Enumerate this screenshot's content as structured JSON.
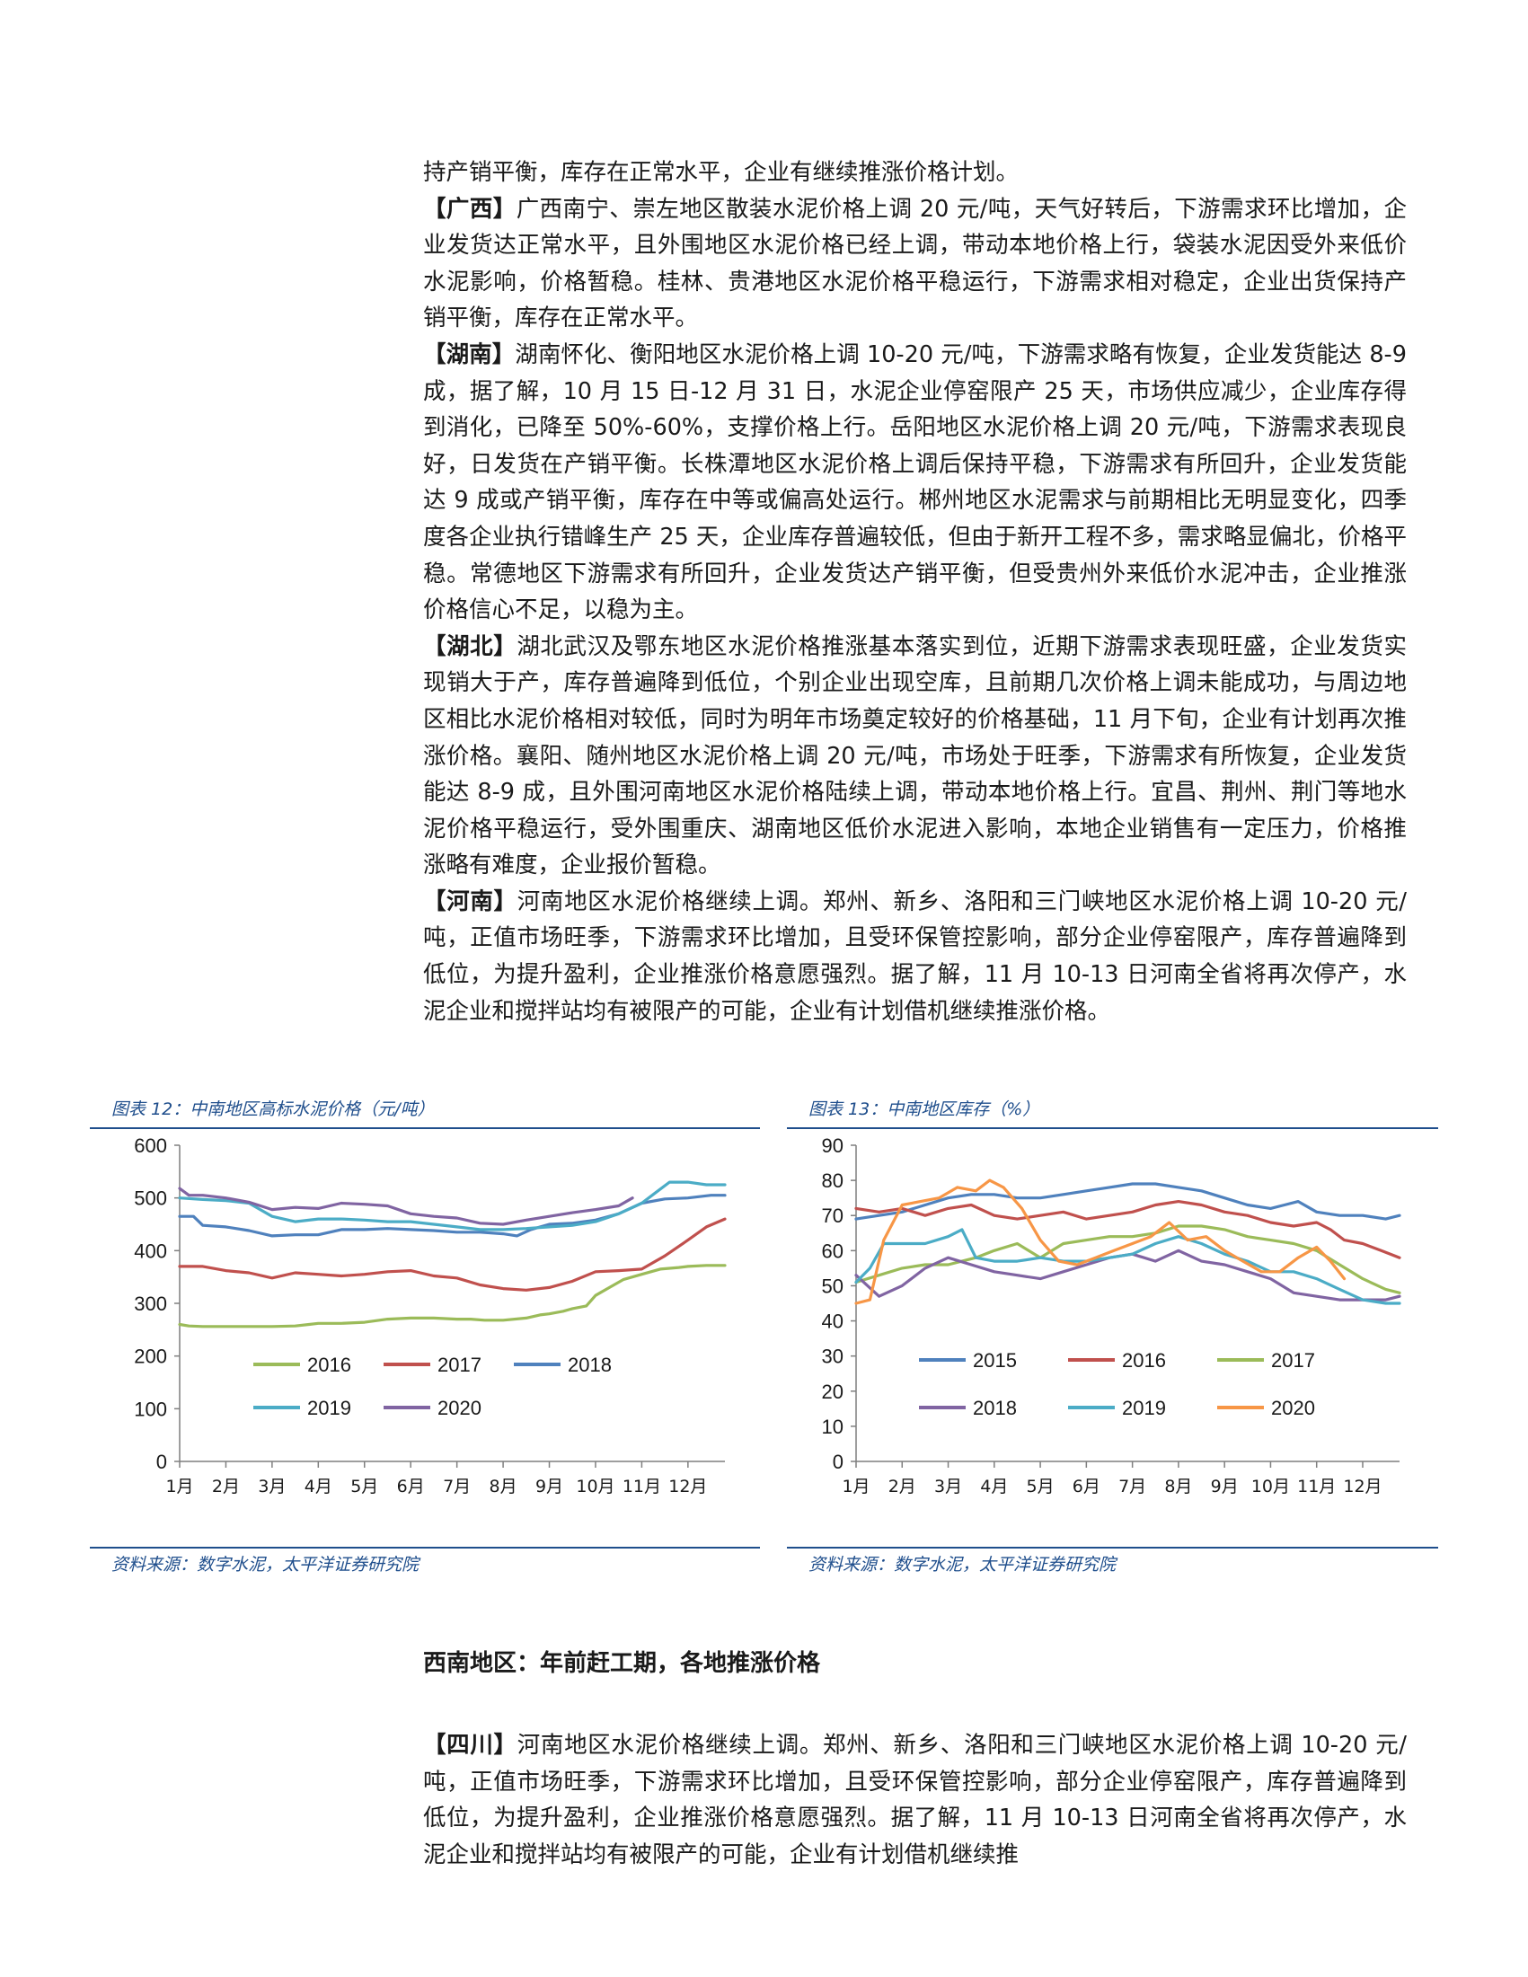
{
  "paragraphs_top": [
    {
      "tag": "",
      "text": "持产销平衡，库存在正常水平，企业有继续推涨价格计划。"
    },
    {
      "tag": "【广西】",
      "text": "广西南宁、崇左地区散装水泥价格上调 20 元/吨，天气好转后，下游需求环比增加，企业发货达正常水平，且外围地区水泥价格已经上调，带动本地价格上行，袋装水泥因受外来低价水泥影响，价格暂稳。桂林、贵港地区水泥价格平稳运行，下游需求相对稳定，企业出货保持产销平衡，库存在正常水平。"
    },
    {
      "tag": "【湖南】",
      "text": "湖南怀化、衡阳地区水泥价格上调 10-20 元/吨，下游需求略有恢复，企业发货能达 8-9 成，据了解，10 月 15 日-12 月 31 日，水泥企业停窑限产 25 天，市场供应减少，企业库存得到消化，已降至 50%-60%，支撑价格上行。岳阳地区水泥价格上调 20 元/吨，下游需求表现良好，日发货在产销平衡。长株潭地区水泥价格上调后保持平稳，下游需求有所回升，企业发货能达 9 成或产销平衡，库存在中等或偏高处运行。郴州地区水泥需求与前期相比无明显变化，四季度各企业执行错峰生产 25 天，企业库存普遍较低，但由于新开工程不多，需求略显偏北，价格平稳。常德地区下游需求有所回升，企业发货达产销平衡，但受贵州外来低价水泥冲击，企业推涨价格信心不足，以稳为主。"
    },
    {
      "tag": "【湖北】",
      "text": "湖北武汉及鄂东地区水泥价格推涨基本落实到位，近期下游需求表现旺盛，企业发货实现销大于产，库存普遍降到低位，个别企业出现空库，且前期几次价格上调未能成功，与周边地区相比水泥价格相对较低，同时为明年市场奠定较好的价格基础，11 月下旬，企业有计划再次推涨价格。襄阳、随州地区水泥价格上调 20 元/吨，市场处于旺季，下游需求有所恢复，企业发货能达 8-9 成，且外围河南地区水泥价格陆续上调，带动本地价格上行。宜昌、荆州、荆门等地水泥价格平稳运行，受外围重庆、湖南地区低价水泥进入影响，本地企业销售有一定压力，价格推涨略有难度，企业报价暂稳。"
    },
    {
      "tag": "【河南】",
      "text": "河南地区水泥价格继续上调。郑州、新乡、洛阳和三门峡地区水泥价格上调 10-20 元/吨，正值市场旺季，下游需求环比增加，且受环保管控影响，部分企业停窑限产，库存普遍降到低位，为提升盈利，企业推涨价格意愿强烈。据了解，11 月 10-13 日河南全省将再次停产，水泥企业和搅拌站均有被限产的可能，企业有计划借机继续推涨价格。"
    }
  ],
  "chart1": {
    "title": "图表 12：中南地区高标水泥价格（元/吨）",
    "source": "资料来源：数字水泥，太平洋证券研究院"
  },
  "chart2": {
    "title": "图表 13：中南地区库存（%）",
    "source": "资料来源：数字水泥，太平洋证券研究院"
  },
  "chart_data": [
    {
      "type": "line",
      "title": "图表 12：中南地区高标水泥价格（元/吨）",
      "ylim": [
        0,
        600
      ],
      "yticks": [
        0,
        100,
        200,
        300,
        400,
        500,
        600
      ],
      "categories": [
        "1月",
        "2月",
        "3月",
        "4月",
        "5月",
        "6月",
        "7月",
        "8月",
        "9月",
        "10月",
        "11月",
        "12月"
      ],
      "legend": "inside-bottom",
      "series": [
        {
          "name": "2016",
          "color": "#9bbb59",
          "x": [
            1,
            1.2,
            1.5,
            2,
            2.5,
            3,
            3.5,
            3.8,
            4,
            4.5,
            5,
            5.5,
            6,
            6.5,
            7,
            7.3,
            7.6,
            8,
            8.5,
            8.8,
            9,
            9.3,
            9.5,
            9.8,
            10,
            10.3,
            10.6,
            11,
            11.4,
            11.8,
            12,
            12.4,
            12.8
          ],
          "values": [
            260,
            257,
            256,
            256,
            256,
            256,
            257,
            260,
            262,
            262,
            264,
            270,
            272,
            272,
            270,
            270,
            268,
            268,
            272,
            278,
            280,
            285,
            290,
            295,
            315,
            330,
            345,
            355,
            365,
            368,
            370,
            372,
            372
          ]
        },
        {
          "name": "2017",
          "color": "#c0504d",
          "x": [
            1,
            1.5,
            2,
            2.5,
            3,
            3.5,
            4,
            4.5,
            5,
            5.5,
            6,
            6.5,
            7,
            7.5,
            8,
            8.5,
            9,
            9.5,
            10,
            10.5,
            11,
            11.5,
            12,
            12.4,
            12.8
          ],
          "values": [
            370,
            370,
            362,
            358,
            348,
            358,
            355,
            352,
            355,
            360,
            362,
            352,
            348,
            335,
            328,
            325,
            330,
            342,
            360,
            362,
            365,
            390,
            420,
            445,
            460
          ]
        },
        {
          "name": "2018",
          "color": "#4f81bd",
          "x": [
            1,
            1.3,
            1.5,
            2,
            2.5,
            3,
            3.5,
            4,
            4.5,
            5,
            5.5,
            6,
            6.5,
            7,
            7.5,
            8,
            8.3,
            8.6,
            9,
            9.5,
            10,
            10.5,
            11,
            11.5,
            12,
            12.5,
            12.8
          ],
          "values": [
            465,
            465,
            448,
            445,
            438,
            428,
            430,
            430,
            440,
            440,
            442,
            440,
            438,
            435,
            435,
            432,
            428,
            440,
            450,
            452,
            458,
            470,
            490,
            498,
            500,
            505,
            505
          ]
        },
        {
          "name": "2019",
          "color": "#4bacc6",
          "x": [
            1,
            1.5,
            2,
            2.5,
            3,
            3.5,
            4,
            4.5,
            5,
            5.5,
            6,
            6.5,
            7,
            7.5,
            8,
            8.5,
            9,
            9.5,
            10,
            10.5,
            11,
            11.3,
            11.6,
            12,
            12.4,
            12.8
          ],
          "values": [
            500,
            497,
            495,
            490,
            465,
            455,
            460,
            460,
            458,
            455,
            455,
            450,
            445,
            440,
            440,
            442,
            445,
            448,
            455,
            470,
            490,
            510,
            530,
            530,
            525,
            525
          ]
        },
        {
          "name": "2020",
          "color": "#8064a2",
          "x": [
            1,
            1.2,
            1.5,
            2,
            2.5,
            3,
            3.5,
            4,
            4.5,
            5,
            5.5,
            6,
            6.5,
            7,
            7.5,
            8,
            8.5,
            9,
            9.5,
            10,
            10.5,
            10.8
          ],
          "values": [
            518,
            505,
            505,
            500,
            492,
            478,
            482,
            480,
            490,
            488,
            485,
            470,
            465,
            462,
            452,
            450,
            458,
            465,
            472,
            478,
            485,
            500
          ]
        }
      ]
    },
    {
      "type": "line",
      "title": "图表 13：中南地区库存（%）",
      "ylim": [
        0,
        90
      ],
      "yticks": [
        0,
        10,
        20,
        30,
        40,
        50,
        60,
        70,
        80,
        90
      ],
      "categories": [
        "1月",
        "2月",
        "3月",
        "4月",
        "5月",
        "6月",
        "7月",
        "8月",
        "9月",
        "10月",
        "11月",
        "12月"
      ],
      "legend": "inside-bottom",
      "series": [
        {
          "name": "2015",
          "color": "#4f81bd",
          "x": [
            1,
            1.5,
            2,
            2.5,
            3,
            3.5,
            4,
            4.5,
            5,
            5.5,
            6,
            6.5,
            7,
            7.5,
            8,
            8.5,
            9,
            9.5,
            10,
            10.3,
            10.6,
            11,
            11.5,
            12,
            12.5,
            12.8
          ],
          "values": [
            69,
            70,
            71,
            73,
            75,
            76,
            76,
            75,
            75,
            76,
            77,
            78,
            79,
            79,
            78,
            77,
            75,
            73,
            72,
            73,
            74,
            71,
            70,
            70,
            69,
            70
          ]
        },
        {
          "name": "2016",
          "color": "#c0504d",
          "x": [
            1,
            1.5,
            2,
            2.5,
            3,
            3.5,
            4,
            4.5,
            5,
            5.5,
            6,
            6.5,
            7,
            7.5,
            8,
            8.5,
            9,
            9.5,
            10,
            10.5,
            11,
            11.3,
            11.6,
            12,
            12.4,
            12.8
          ],
          "values": [
            72,
            71,
            72,
            70,
            72,
            73,
            70,
            69,
            70,
            71,
            69,
            70,
            71,
            73,
            74,
            73,
            71,
            70,
            68,
            67,
            68,
            66,
            63,
            62,
            60,
            58
          ]
        },
        {
          "name": "2017",
          "color": "#9bbb59",
          "x": [
            1,
            1.5,
            2,
            2.5,
            3,
            3.3,
            3.6,
            4,
            4.5,
            5,
            5.5,
            6,
            6.5,
            7,
            7.5,
            8,
            8.5,
            9,
            9.5,
            10,
            10.5,
            11,
            11.5,
            12,
            12.5,
            12.8
          ],
          "values": [
            51,
            53,
            55,
            56,
            56,
            57,
            58,
            60,
            62,
            58,
            62,
            63,
            64,
            64,
            65,
            67,
            67,
            66,
            64,
            63,
            62,
            60,
            56,
            52,
            49,
            48
          ]
        },
        {
          "name": "2018",
          "color": "#8064a2",
          "x": [
            1,
            1.5,
            2,
            2.5,
            3,
            3.5,
            4,
            4.5,
            5,
            5.5,
            6,
            6.5,
            7,
            7.5,
            8,
            8.5,
            9,
            9.5,
            10,
            10.5,
            11,
            11.5,
            12,
            12.5,
            12.8
          ],
          "values": [
            53,
            47,
            50,
            55,
            58,
            56,
            54,
            53,
            52,
            54,
            56,
            58,
            59,
            57,
            60,
            57,
            56,
            54,
            52,
            48,
            47,
            46,
            46,
            46,
            47
          ]
        },
        {
          "name": "2019",
          "color": "#4bacc6",
          "x": [
            1,
            1.3,
            1.6,
            2,
            2.5,
            3,
            3.3,
            3.6,
            4,
            4.5,
            5,
            5.5,
            6,
            6.5,
            7,
            7.5,
            8,
            8.5,
            9,
            9.5,
            10,
            10.5,
            11,
            11.5,
            12,
            12.5,
            12.8
          ],
          "values": [
            51,
            55,
            62,
            62,
            62,
            64,
            66,
            58,
            57,
            57,
            58,
            57,
            57,
            58,
            59,
            62,
            64,
            62,
            59,
            57,
            54,
            54,
            52,
            49,
            46,
            45,
            45
          ]
        },
        {
          "name": "2020",
          "color": "#f79646",
          "x": [
            1,
            1.3,
            1.6,
            2,
            2.4,
            2.8,
            3.2,
            3.6,
            3.9,
            4.2,
            4.6,
            5,
            5.4,
            5.8,
            6.2,
            6.6,
            7,
            7.4,
            7.8,
            8.2,
            8.6,
            9,
            9.4,
            9.8,
            10.2,
            10.6,
            11,
            11.3,
            11.6
          ],
          "values": [
            45,
            46,
            63,
            73,
            74,
            75,
            78,
            77,
            80,
            78,
            72,
            63,
            57,
            56,
            58,
            60,
            62,
            64,
            68,
            63,
            64,
            60,
            57,
            54,
            54,
            58,
            61,
            57,
            52
          ]
        }
      ]
    }
  ],
  "section": {
    "heading": "西南地区：年前赶工期，各地推涨价格"
  },
  "paragraphs_bottom": [
    {
      "tag": "【四川】",
      "text": "河南地区水泥价格继续上调。郑州、新乡、洛阳和三门峡地区水泥价格上调 10-20 元/吨，正值市场旺季，下游需求环比增加，且受环保管控影响，部分企业停窑限产，库存普遍降到低位，为提升盈利，企业推涨价格意愿强烈。据了解，11 月 10-13 日河南全省将再次停产，水泥企业和搅拌站均有被限产的可能，企业有计划借机继续推"
    }
  ]
}
